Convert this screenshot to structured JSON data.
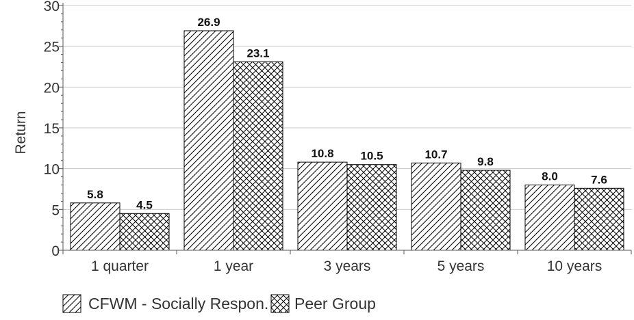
{
  "chart_data": {
    "type": "bar",
    "ylabel": "Return",
    "xlabel": "",
    "categories": [
      "1 quarter",
      "1 year",
      "3 years",
      "5 years",
      "10 years"
    ],
    "series": [
      {
        "name": "CFWM - Socially Respon.",
        "values": [
          5.8,
          26.9,
          10.8,
          10.7,
          8.0
        ],
        "labels": [
          "5.8",
          "26.9",
          "10.8",
          "10.7",
          "8.0"
        ],
        "pattern": "diagonal-hatch"
      },
      {
        "name": "Peer Group",
        "values": [
          4.5,
          23.1,
          10.5,
          9.8,
          7.6
        ],
        "labels": [
          "4.5",
          "23.1",
          "10.5",
          "9.8",
          "7.6"
        ],
        "pattern": "crosshatch"
      }
    ],
    "ylim": [
      0,
      30
    ],
    "yticks": [
      0,
      5,
      10,
      15,
      20,
      25,
      30
    ],
    "ytick_labels": [
      "0",
      "5",
      "10",
      "15",
      "20",
      "25",
      "30"
    ],
    "grid": true,
    "legend": "bottom-left",
    "colors": {
      "bar_fill": "#ffffff",
      "bar_stroke": "#000000",
      "grid": "#c8c8c8",
      "axis": "#555555"
    }
  }
}
